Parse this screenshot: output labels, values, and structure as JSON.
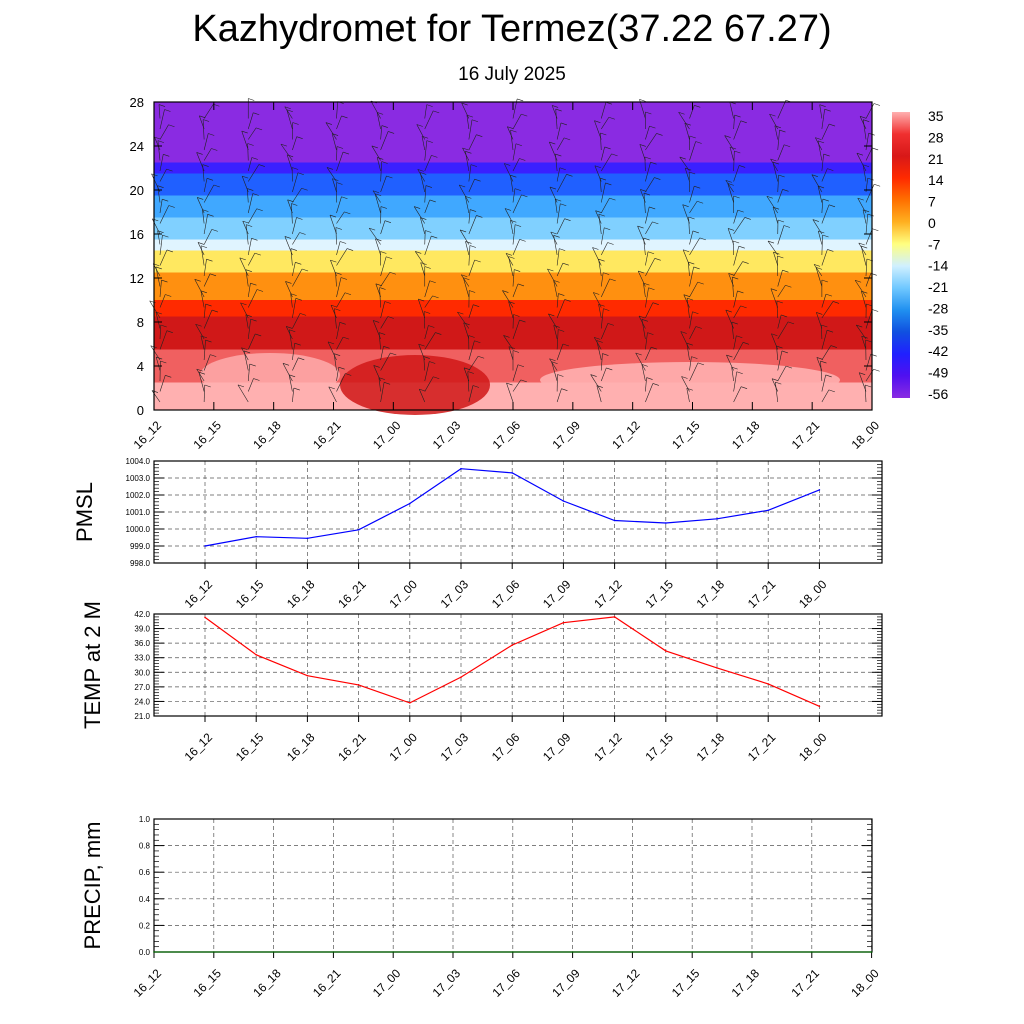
{
  "title": "Kazhydromet for Termez(37.22 67.27)",
  "subtitle": "16 July 2025",
  "chart_data": [
    {
      "type": "heatmap",
      "description_units": "temperature cross-section with wind barbs",
      "y_ticks": [
        0,
        4,
        8,
        12,
        16,
        20,
        24,
        28
      ],
      "ylim": [
        0,
        28
      ],
      "x_ticks": [
        "16_12",
        "16_15",
        "16_18",
        "16_21",
        "17_00",
        "17_03",
        "17_06",
        "17_09",
        "17_12",
        "17_15",
        "17_18",
        "17_21",
        "18_00"
      ],
      "colorbar_labels": [
        "35",
        "28",
        "21",
        "14",
        "7",
        "0",
        "-7",
        "-14",
        "-21",
        "-28",
        "-35",
        "-42",
        "-49",
        "-56"
      ],
      "colorbar_colors": [
        "#ffb0b0",
        "#f03030",
        "#d81818",
        "#ff2a00",
        "#ff7000",
        "#ffb020",
        "#ffff80",
        "#d0f0ff",
        "#70c8ff",
        "#2090f0",
        "#1050e0",
        "#2020ff",
        "#5010f0",
        "#8a2be2"
      ],
      "bands": [
        {
          "from": 0,
          "to": 2.5,
          "color": "#ffb0b0"
        },
        {
          "from": 2.5,
          "to": 5.5,
          "color": "#f06060"
        },
        {
          "from": 5.5,
          "to": 8.5,
          "color": "#d01818"
        },
        {
          "from": 8.5,
          "to": 10,
          "color": "#ff2a00"
        },
        {
          "from": 10,
          "to": 12.5,
          "color": "#ff9010"
        },
        {
          "from": 12.5,
          "to": 14.5,
          "color": "#ffe860"
        },
        {
          "from": 14.5,
          "to": 15.5,
          "color": "#e0f4ff"
        },
        {
          "from": 15.5,
          "to": 17.5,
          "color": "#80d0ff"
        },
        {
          "from": 17.5,
          "to": 19.5,
          "color": "#40a8ff"
        },
        {
          "from": 19.5,
          "to": 21.5,
          "color": "#2060ff"
        },
        {
          "from": 21.5,
          "to": 22.5,
          "color": "#3a20ff"
        },
        {
          "from": 22.5,
          "to": 28,
          "color": "#8a2be2"
        }
      ]
    },
    {
      "type": "line",
      "ylabel": "PMSL",
      "ylim": [
        998.0,
        1004.0
      ],
      "y_ticks": [
        "998.0",
        "999.0",
        "1000.0",
        "1001.0",
        "1002.0",
        "1003.0",
        "1004.0"
      ],
      "x": [
        "16_12",
        "16_15",
        "16_18",
        "16_21",
        "17_00",
        "17_03",
        "17_06",
        "17_09",
        "17_12",
        "17_15",
        "17_18",
        "17_21",
        "18_00"
      ],
      "values": [
        999.0,
        999.55,
        999.45,
        999.95,
        1001.5,
        1003.55,
        1003.3,
        1001.65,
        1000.5,
        1000.35,
        1000.6,
        1001.1,
        1002.3
      ],
      "color": "#0000ff"
    },
    {
      "type": "line",
      "ylabel": "TEMP at 2 M",
      "ylim": [
        21.0,
        42.0
      ],
      "y_ticks": [
        "21.0",
        "24.0",
        "27.0",
        "30.0",
        "33.0",
        "36.0",
        "39.0",
        "42.0"
      ],
      "x": [
        "16_12",
        "16_15",
        "16_18",
        "16_21",
        "17_00",
        "17_03",
        "17_06",
        "17_09",
        "17_12",
        "17_15",
        "17_18",
        "17_21",
        "18_00"
      ],
      "values": [
        41.3,
        33.6,
        29.3,
        27.4,
        23.7,
        29.0,
        35.6,
        40.2,
        41.4,
        34.4,
        30.9,
        27.6,
        23.0
      ],
      "color": "#ff0000"
    },
    {
      "type": "line",
      "ylabel": "PRECIP, mm",
      "ylim": [
        0.0,
        1.0
      ],
      "y_ticks": [
        "0.0",
        "0.2",
        "0.4",
        "0.6",
        "0.8",
        "1.0"
      ],
      "x": [
        "16_12",
        "16_15",
        "16_18",
        "16_21",
        "17_00",
        "17_03",
        "17_06",
        "17_09",
        "17_12",
        "17_15",
        "17_18",
        "17_21",
        "18_00"
      ],
      "values": [
        0,
        0,
        0,
        0,
        0,
        0,
        0,
        0,
        0,
        0,
        0,
        0,
        0
      ],
      "color": "#006400"
    }
  ]
}
